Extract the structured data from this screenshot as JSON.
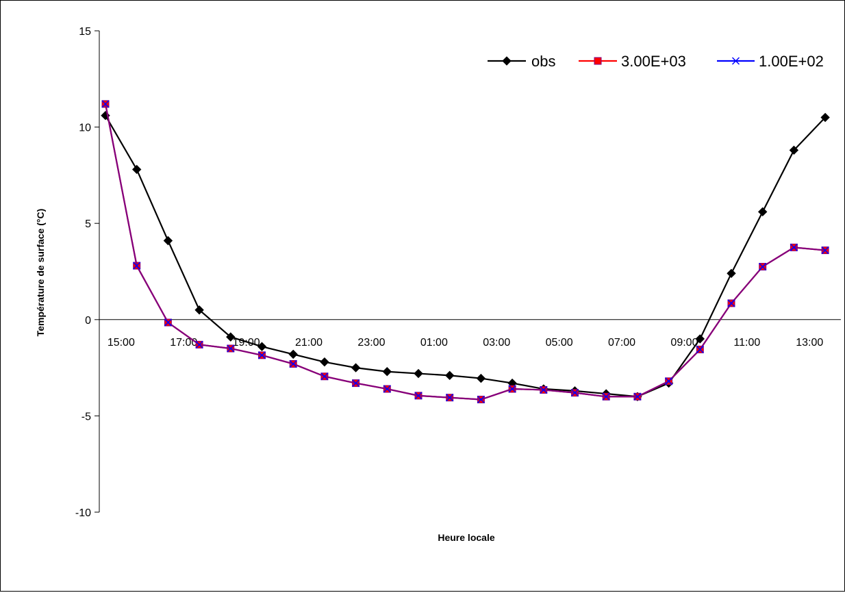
{
  "chart_data": {
    "type": "line",
    "title": "",
    "xlabel": "Heure locale",
    "ylabel": "Température de surface  (°C)",
    "ylim": [
      -10,
      15
    ],
    "yticks": [
      -10,
      -5,
      0,
      5,
      10,
      15
    ],
    "y_tick_labels": [
      "-10",
      "-5",
      "0",
      "5",
      "10",
      "15"
    ],
    "grid": false,
    "legend_position": "top-right",
    "x": [
      "15:00",
      "16:00",
      "17:00",
      "18:00",
      "19:00",
      "20:00",
      "21:00",
      "22:00",
      "23:00",
      "00:00",
      "01:00",
      "02:00",
      "03:00",
      "04:00",
      "05:00",
      "06:00",
      "07:00",
      "08:00",
      "09:00",
      "10:00",
      "11:00",
      "12:00",
      "13:00",
      "14:00"
    ],
    "x_tick_labels": [
      "15:00",
      "17:00",
      "19:00",
      "21:00",
      "23:00",
      "01:00",
      "03:00",
      "05:00",
      "07:00",
      "09:00",
      "11:00",
      "13:00"
    ],
    "series": [
      {
        "name": "obs",
        "color": "#000000",
        "marker": "diamond",
        "values": [
          10.6,
          7.8,
          4.1,
          0.5,
          -0.9,
          -1.4,
          -1.8,
          -2.2,
          -2.5,
          -2.7,
          -2.8,
          -2.9,
          -3.05,
          -3.3,
          -3.6,
          -3.7,
          -3.85,
          -4.0,
          -3.3,
          -1.0,
          2.4,
          5.6,
          8.8,
          10.5
        ]
      },
      {
        "name": "3.00E+03",
        "color": "#ff0000",
        "marker": "square",
        "values": [
          11.2,
          2.8,
          -0.15,
          -1.3,
          -1.5,
          -1.85,
          -2.3,
          -2.95,
          -3.3,
          -3.6,
          -3.95,
          -4.05,
          -4.15,
          -3.6,
          -3.65,
          -3.8,
          -4.0,
          -4.0,
          -3.2,
          -1.55,
          0.85,
          2.75,
          3.75,
          3.6
        ]
      },
      {
        "name": "1.00E+02",
        "color": "#0000ff",
        "marker": "x",
        "values": [
          11.2,
          2.8,
          -0.15,
          -1.3,
          -1.5,
          -1.85,
          -2.3,
          -2.95,
          -3.3,
          -3.6,
          -3.95,
          -4.05,
          -4.15,
          -3.6,
          -3.65,
          -3.8,
          -4.0,
          -4.0,
          -3.2,
          -1.55,
          0.85,
          2.75,
          3.75,
          3.6
        ]
      }
    ],
    "combined_line_color": "#800080"
  }
}
